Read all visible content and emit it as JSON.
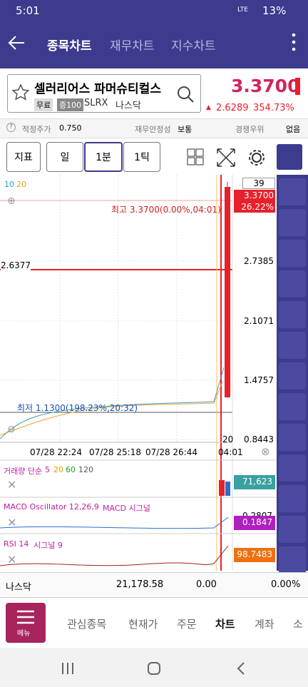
{
  "status": {
    "time": "5:01",
    "battery": "13%",
    "network": "LTE"
  },
  "header": {
    "tabs": [
      "종목차트",
      "재무차트",
      "지수차트"
    ]
  },
  "stock": {
    "name": "셀러리어스 파머슈티컬스",
    "badges": [
      "무료",
      "증100"
    ],
    "ticker": "SLRX",
    "market": "나스닥",
    "price": "3.3700",
    "change": "2.6289",
    "change_pct": "354.73%"
  },
  "info": {
    "items": [
      {
        "label": "적정주가",
        "value": "0.750"
      },
      {
        "label": "재무안정성",
        "value": "보통"
      },
      {
        "label": "경쟁우위",
        "value": "없음"
      }
    ]
  },
  "toolbar": {
    "buttons": [
      "지표",
      "일",
      "1분",
      "1틱"
    ]
  },
  "chart": {
    "ma_labels": [
      "10",
      "20"
    ],
    "count": "39",
    "price_axis": [
      "3.3700",
      "26.22%",
      "2.7385",
      "2.1071",
      "1.4757",
      "0.8443"
    ],
    "crosshair_price": "2.6377",
    "high_label": "최고 3.3700(0.00%,04:01)",
    "low_label": "최저 1.1300(198.23%,20:32)",
    "x_labels": [
      "07/28 22:24",
      "07/28 25:18",
      "07/28 26:44",
      "04:01"
    ],
    "x_extra": "20"
  },
  "volume": {
    "title": "거래량 단순",
    "periods": [
      "5",
      "20",
      "60",
      "120"
    ],
    "value": "71,623"
  },
  "macd": {
    "title": "MACD Oscillator 12,26,9",
    "signal": "MACD 시그널",
    "value": "0.1847",
    "axis": "0.2807"
  },
  "rsi": {
    "title": "RSI 14",
    "signal": "시그널 9",
    "value": "98.7483"
  },
  "index_row": {
    "name": "나스닥",
    "value": "21,178.58",
    "change": "0.00",
    "change_pct": "0.00%"
  },
  "nav": {
    "menu": "메뉴",
    "tabs": [
      "관심종목",
      "현재가",
      "주문",
      "차트",
      "계좌",
      "소"
    ]
  }
}
